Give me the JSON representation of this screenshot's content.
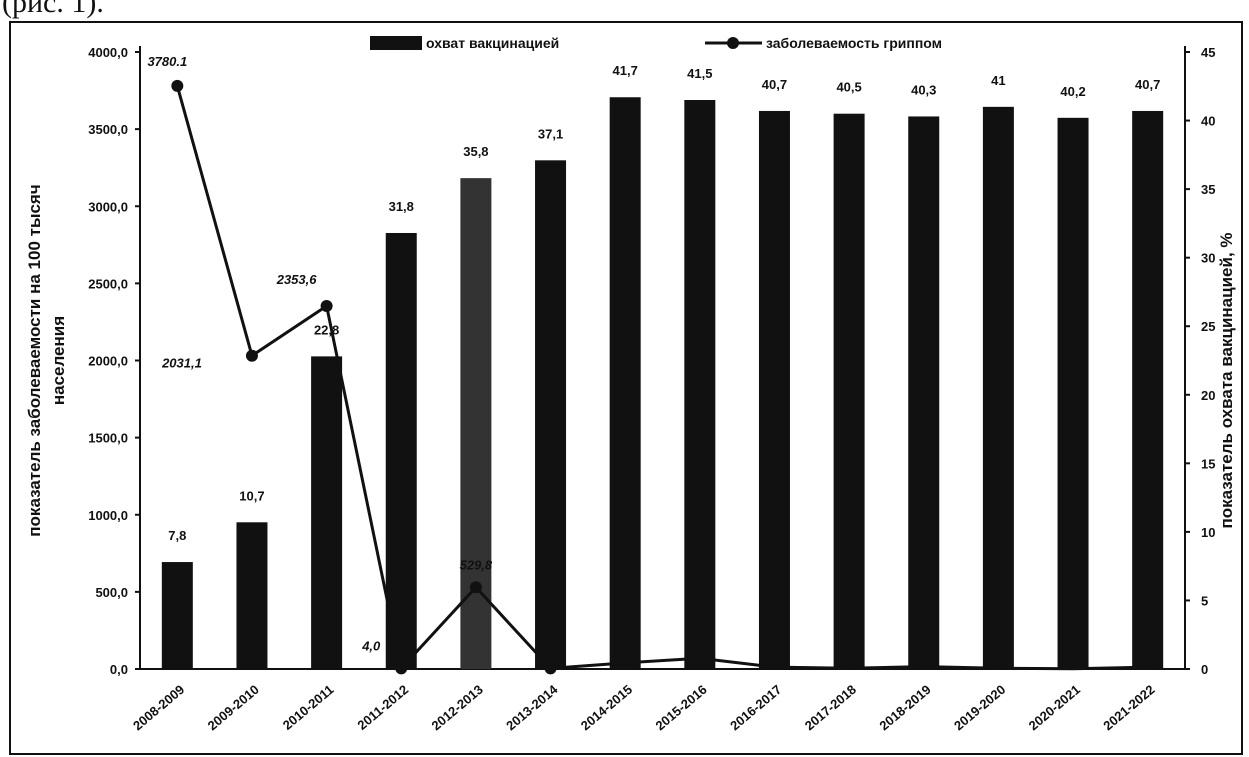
{
  "caption_fragment": "(рис. 1).",
  "chart_data": {
    "type": "bar",
    "categories": [
      "2008-2009",
      "2009-2010",
      "2010-2011",
      "2011-2012",
      "2012-2013",
      "2013-2014",
      "2014-2015",
      "2015-2016",
      "2016-2017",
      "2017-2018",
      "2018-2019",
      "2019-2020",
      "2020-2021",
      "2021-2022"
    ],
    "category_labels": [
      "2008-2009",
      "2009-2010",
      "2010-2011",
      "2011-2012",
      "2012-2013",
      "2013-2014",
      "2014-2015",
      "2015-2016",
      "2016-2017",
      "2017-2018",
      "2018-2019",
      "2019-2020",
      "2020-2021",
      "2021-2022"
    ],
    "series": [
      {
        "name": "охват вакцинацией",
        "type": "bar",
        "axis": "right",
        "values": [
          7.8,
          10.7,
          22.8,
          31.8,
          35.8,
          37.1,
          41.7,
          41.5,
          40.7,
          40.5,
          40.3,
          41,
          40.2,
          40.7
        ],
        "labels": [
          "7,8",
          "10,7",
          "22,8",
          "31,8",
          "35,8",
          "37,1",
          "41,7",
          "41,5",
          "40,7",
          "40,5",
          "40,3",
          "41",
          "40,2",
          "40,7"
        ],
        "color": "#111111"
      },
      {
        "name": "заболеваемость гриппом",
        "type": "line",
        "axis": "left",
        "values": [
          3780.1,
          2031.1,
          2353.6,
          4.0,
          529.8,
          4.0,
          40,
          70,
          12,
          5,
          15,
          5,
          2,
          12
        ],
        "labels": [
          "3780.1",
          "2031,1",
          "2353,6",
          "4,0",
          "529,8",
          "",
          "",
          "",
          "",
          "",
          "",
          "",
          "",
          ""
        ],
        "color": "#111111"
      }
    ],
    "y_left": {
      "label": "показатель заболеваемости на 100 тысяч населения",
      "min": 0,
      "max": 4000,
      "step": 500,
      "tick_labels": [
        "0,0",
        "500,0",
        "1000,0",
        "1500,0",
        "2000,0",
        "2500,0",
        "3000,0",
        "3500,0",
        "4000,0"
      ]
    },
    "y_right": {
      "label": "показатель охвата вакцинацией, %",
      "min": 0,
      "max": 45,
      "step": 5,
      "tick_labels": [
        "0",
        "5",
        "10",
        "15",
        "20",
        "25",
        "30",
        "35",
        "40",
        "45"
      ]
    },
    "legend": {
      "position": "top-center",
      "items": [
        "охват вакцинацией",
        "заболеваемость гриппом"
      ]
    },
    "grid": false
  }
}
